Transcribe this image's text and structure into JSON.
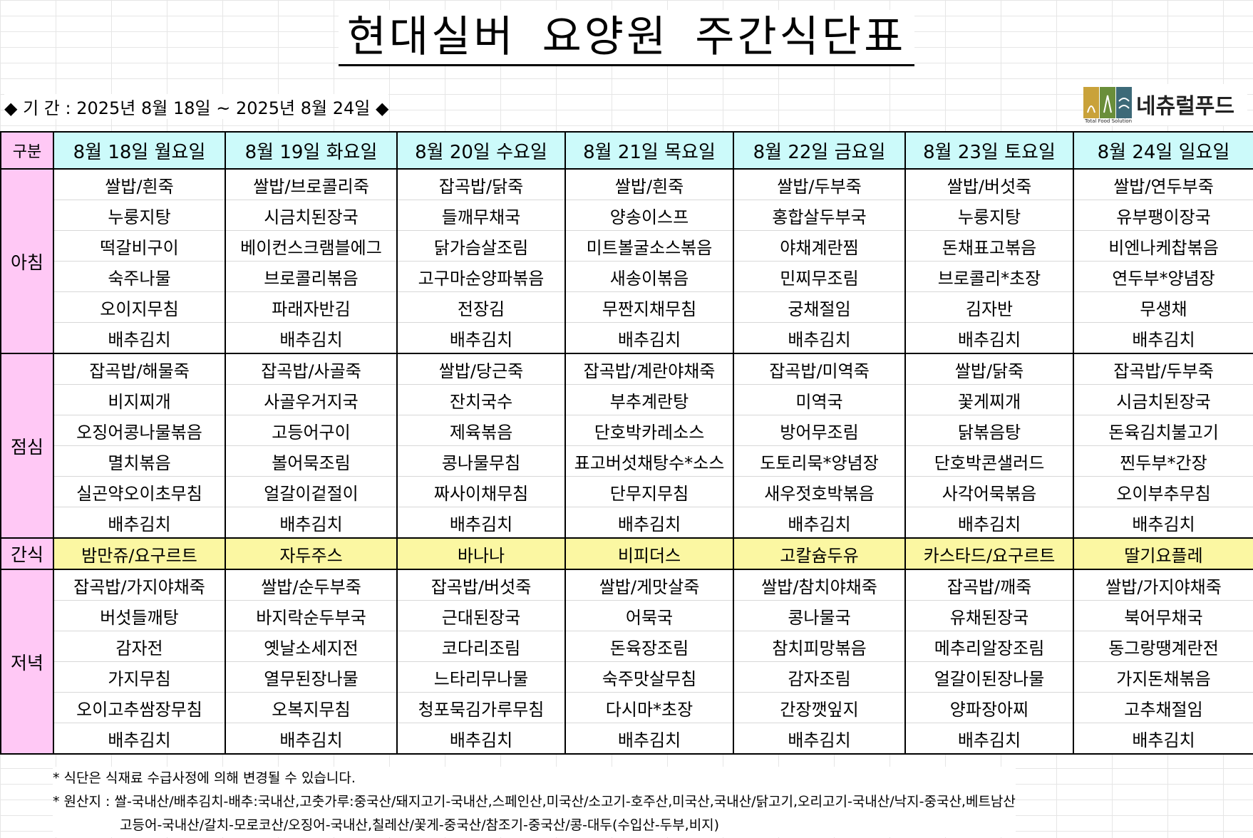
{
  "title": "현대실버 요양원 주간식단표",
  "period": "◆ 기 간 : 2025년 8월 18일 ~ 2025년 8월 24일 ◆",
  "logo": {
    "name": "네츄럴푸드",
    "sub": "Total Food Solution"
  },
  "colors": {
    "header": "#ccfafa",
    "meal_label": "#ffc8f5",
    "snack": "#fbf7a2"
  },
  "header": {
    "gubun": "구분",
    "days": [
      "8월 18일 월요일",
      "8월 19일 화요일",
      "8월 20일 수요일",
      "8월 21일 목요일",
      "8월 22일 금요일",
      "8월 23일 토요일",
      "8월 24일 일요일"
    ]
  },
  "meals": {
    "breakfast": {
      "label": "아침",
      "rows": [
        [
          "쌀밥/흰죽",
          "쌀밥/브로콜리죽",
          "잡곡밥/닭죽",
          "쌀밥/흰죽",
          "쌀밥/두부죽",
          "쌀밥/버섯죽",
          "쌀밥/연두부죽"
        ],
        [
          "누룽지탕",
          "시금치된장국",
          "들깨무채국",
          "양송이스프",
          "홍합살두부국",
          "누룽지탕",
          "유부팽이장국"
        ],
        [
          "떡갈비구이",
          "베이컨스크램블에그",
          "닭가슴살조림",
          "미트볼굴소스볶음",
          "야채계란찜",
          "돈채표고볶음",
          "비엔나케찹볶음"
        ],
        [
          "숙주나물",
          "브로콜리볶음",
          "고구마순양파볶음",
          "새송이볶음",
          "민찌무조림",
          "브로콜리*초장",
          "연두부*양념장"
        ],
        [
          "오이지무침",
          "파래자반김",
          "전장김",
          "무짠지채무침",
          "궁채절임",
          "김자반",
          "무생채"
        ],
        [
          "배추김치",
          "배추김치",
          "배추김치",
          "배추김치",
          "배추김치",
          "배추김치",
          "배추김치"
        ]
      ]
    },
    "lunch": {
      "label": "점심",
      "rows": [
        [
          "잡곡밥/해물죽",
          "잡곡밥/사골죽",
          "쌀밥/당근죽",
          "잡곡밥/계란야채죽",
          "잡곡밥/미역죽",
          "쌀밥/닭죽",
          "잡곡밥/두부죽"
        ],
        [
          "비지찌개",
          "사골우거지국",
          "잔치국수",
          "부추계란탕",
          "미역국",
          "꽃게찌개",
          "시금치된장국"
        ],
        [
          "오징어콩나물볶음",
          "고등어구이",
          "제육볶음",
          "단호박카레소스",
          "방어무조림",
          "닭볶음탕",
          "돈육김치불고기"
        ],
        [
          "멸치볶음",
          "볼어묵조림",
          "콩나물무침",
          "표고버섯채탕수*소스",
          "도토리묵*양념장",
          "단호박콘샐러드",
          "찐두부*간장"
        ],
        [
          "실곤약오이초무침",
          "얼갈이겉절이",
          "짜사이채무침",
          "단무지무침",
          "새우젓호박볶음",
          "사각어묵볶음",
          "오이부추무침"
        ],
        [
          "배추김치",
          "배추김치",
          "배추김치",
          "배추김치",
          "배추김치",
          "배추김치",
          "배추김치"
        ]
      ]
    },
    "snack": {
      "label": "간식",
      "items": [
        "밤만쥬/요구르트",
        "자두주스",
        "바나나",
        "비피더스",
        "고칼슘두유",
        "카스타드/요구르트",
        "딸기요플레"
      ]
    },
    "dinner": {
      "label": "저녁",
      "rows": [
        [
          "잡곡밥/가지야채죽",
          "쌀밥/순두부죽",
          "잡곡밥/버섯죽",
          "쌀밥/게맛살죽",
          "쌀밥/참치야채죽",
          "잡곡밥/깨죽",
          "쌀밥/가지야채죽"
        ],
        [
          "버섯들깨탕",
          "바지락순두부국",
          "근대된장국",
          "어묵국",
          "콩나물국",
          "유채된장국",
          "북어무채국"
        ],
        [
          "감자전",
          "옛날소세지전",
          "코다리조림",
          "돈육장조림",
          "참치피망볶음",
          "메추리알장조림",
          "동그랑땡계란전"
        ],
        [
          "가지무침",
          "열무된장나물",
          "느타리무나물",
          "숙주맛살무침",
          "감자조림",
          "얼갈이된장나물",
          "가지돈채볶음"
        ],
        [
          "오이고추쌈장무침",
          "오복지무침",
          "청포묵김가루무침",
          "다시마*초장",
          "간장깻잎지",
          "양파장아찌",
          "고추채절임"
        ],
        [
          "배추김치",
          "배추김치",
          "배추김치",
          "배추김치",
          "배추김치",
          "배추김치",
          "배추김치"
        ]
      ]
    }
  },
  "notes": [
    "* 식단은 식재료 수급사정에 의해 변경될 수 있습니다.",
    "* 원산지 : 쌀-국내산/배추김치-배추:국내산,고춧가루:중국산/돼지고기-국내산,스페인산,미국산/소고기-호주산,미국산,국내산/닭고기,오리고기-국내산/낙지-중국산,베트남산",
    "고등어-국내산/갈치-모로코산/오징어-국내산,칠레산/꽃게-중국산/참조기-중국산/콩-대두(수입산-두부,비지)"
  ]
}
